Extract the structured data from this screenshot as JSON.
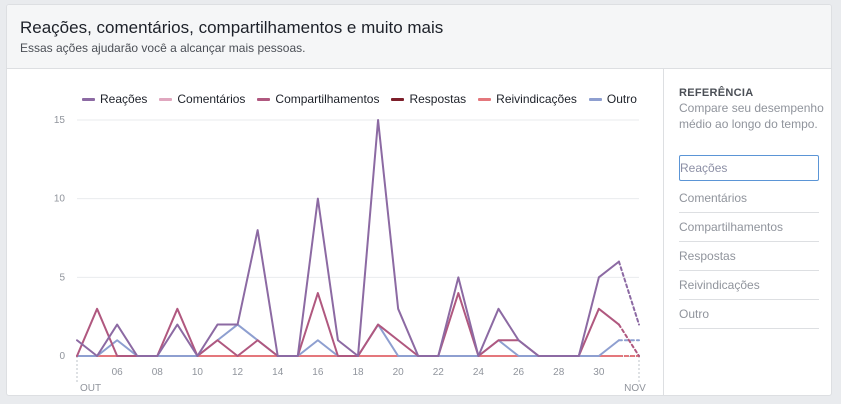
{
  "header": {
    "title": "Reações, comentários, compartilhamentos e muito mais",
    "subtitle": "Essas ações ajudarão você a alcançar mais pessoas."
  },
  "legend": [
    {
      "label": "Reações",
      "color": "#8c6aa3"
    },
    {
      "label": "Comentários",
      "color": "#e0a7bf"
    },
    {
      "label": "Compartilhamentos",
      "color": "#b0587f"
    },
    {
      "label": "Respostas",
      "color": "#7d1f2a"
    },
    {
      "label": "Reivindicações",
      "color": "#e4777c"
    },
    {
      "label": "Outro",
      "color": "#8e9fd0"
    }
  ],
  "reference": {
    "title": "REFERÊNCIA",
    "description": "Compare seu desempenho médio ao longo do tempo.",
    "items": [
      "Reações",
      "Comentários",
      "Compartilhamentos",
      "Respostas",
      "Reivindicações",
      "Outro"
    ],
    "selected_index": 0
  },
  "chart_data": {
    "type": "line",
    "ylim": [
      0,
      15
    ],
    "y_ticks": [
      0,
      5,
      10,
      15
    ],
    "x_start_day": 4,
    "x_end_day": 32,
    "x_tick_labels": [
      {
        "day": 6,
        "label": "06"
      },
      {
        "day": 8,
        "label": "08"
      },
      {
        "day": 10,
        "label": "10"
      },
      {
        "day": 12,
        "label": "12"
      },
      {
        "day": 14,
        "label": "14"
      },
      {
        "day": 16,
        "label": "16"
      },
      {
        "day": 18,
        "label": "18"
      },
      {
        "day": 20,
        "label": "20"
      },
      {
        "day": 22,
        "label": "22"
      },
      {
        "day": 24,
        "label": "24"
      },
      {
        "day": 26,
        "label": "26"
      },
      {
        "day": 28,
        "label": "28"
      },
      {
        "day": 30,
        "label": "30"
      }
    ],
    "month_labels": [
      {
        "day": 4,
        "label": "OUT"
      },
      {
        "day": 32,
        "label": "NOV"
      }
    ],
    "series": [
      {
        "name": "Reações",
        "color": "#8c6aa3",
        "values": [
          1,
          0,
          2,
          0,
          0,
          2,
          0,
          2,
          2,
          8,
          0,
          0,
          10,
          1,
          0,
          15,
          3,
          0,
          0,
          5,
          0,
          3,
          1,
          0,
          0,
          0,
          5,
          6,
          2
        ]
      },
      {
        "name": "Comentários",
        "color": "#e0a7bf",
        "values": [
          0,
          0,
          0,
          0,
          0,
          0,
          0,
          0,
          0,
          0,
          0,
          0,
          0,
          0,
          0,
          0,
          0,
          0,
          0,
          0,
          0,
          0,
          0,
          0,
          0,
          0,
          0,
          0,
          0
        ]
      },
      {
        "name": "Compartilhamentos",
        "color": "#b0587f",
        "values": [
          0,
          3,
          0,
          0,
          0,
          3,
          0,
          1,
          0,
          1,
          0,
          0,
          4,
          0,
          0,
          2,
          1,
          0,
          0,
          4,
          0,
          1,
          1,
          0,
          0,
          0,
          3,
          2,
          0
        ]
      },
      {
        "name": "Respostas",
        "color": "#7d1f2a",
        "values": [
          0,
          0,
          0,
          0,
          0,
          0,
          0,
          0,
          0,
          0,
          0,
          0,
          0,
          0,
          0,
          0,
          0,
          0,
          0,
          0,
          0,
          0,
          0,
          0,
          0,
          0,
          0,
          0,
          0
        ]
      },
      {
        "name": "Reivindicações",
        "color": "#e4777c",
        "values": [
          0,
          0,
          0,
          0,
          0,
          0,
          0,
          0,
          0,
          0,
          0,
          0,
          0,
          0,
          0,
          0,
          0,
          0,
          0,
          0,
          0,
          0,
          0,
          0,
          0,
          0,
          0,
          0,
          0
        ]
      },
      {
        "name": "Outro",
        "color": "#8e9fd0",
        "values": [
          0,
          0,
          1,
          0,
          0,
          0,
          0,
          1,
          2,
          1,
          0,
          0,
          1,
          0,
          0,
          2,
          0,
          0,
          0,
          0,
          0,
          1,
          0,
          0,
          0,
          0,
          0,
          1,
          1
        ]
      }
    ]
  }
}
